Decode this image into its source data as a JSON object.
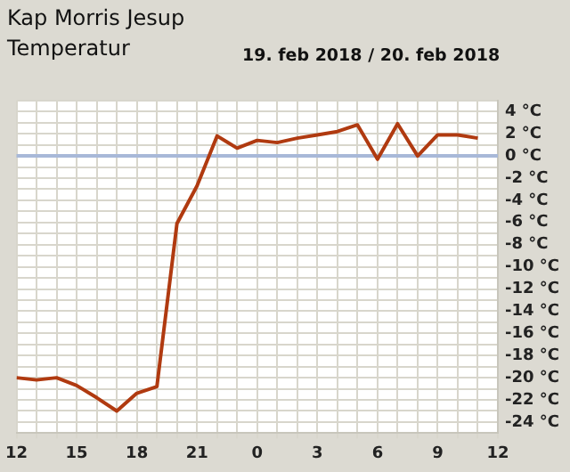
{
  "chart_data": {
    "type": "line",
    "title": "Kap Morris Jesup",
    "subtitle": "Temperatur",
    "annotations": [
      "19. feb 2018 / 20. feb 2018"
    ],
    "x": [
      "2018-02-19T12:00",
      "2018-02-19T13:00",
      "2018-02-19T14:00",
      "2018-02-19T15:00",
      "2018-02-19T16:00",
      "2018-02-19T17:00",
      "2018-02-19T18:00",
      "2018-02-19T19:00",
      "2018-02-19T20:00",
      "2018-02-19T21:00",
      "2018-02-19T22:00",
      "2018-02-19T23:00",
      "2018-02-20T00:00",
      "2018-02-20T01:00",
      "2018-02-20T02:00",
      "2018-02-20T03:00",
      "2018-02-20T04:00",
      "2018-02-20T05:00",
      "2018-02-20T06:00",
      "2018-02-20T07:00",
      "2018-02-20T08:00",
      "2018-02-20T09:00",
      "2018-02-20T10:00",
      "2018-02-20T11:00"
    ],
    "series": [
      {
        "color": "#b03a10",
        "values": [
          -20,
          -20.2,
          -20,
          -20.7,
          -21.8,
          -23,
          -21.4,
          -20.8,
          -6.1,
          -2.7,
          1.8,
          0.7,
          1.4,
          1.2,
          1.6,
          1.9,
          2.2,
          2.8,
          -0.3,
          2.9,
          0,
          1.9,
          1.9,
          1.6
        ]
      }
    ],
    "xlim": [
      "2018-02-19T12:00",
      "2018-02-20T12:00"
    ],
    "xticks": [
      {
        "value": "2018-02-19T12:00",
        "label": "12"
      },
      {
        "value": "2018-02-19T13:00",
        "label": null
      },
      {
        "value": "2018-02-19T14:00",
        "label": null
      },
      {
        "value": "2018-02-19T15:00",
        "label": "15"
      },
      {
        "value": "2018-02-19T16:00",
        "label": null
      },
      {
        "value": "2018-02-19T17:00",
        "label": null
      },
      {
        "value": "2018-02-19T18:00",
        "label": "18"
      },
      {
        "value": "2018-02-19T19:00",
        "label": null
      },
      {
        "value": "2018-02-19T20:00",
        "label": null
      },
      {
        "value": "2018-02-19T21:00",
        "label": "21"
      },
      {
        "value": "2018-02-19T22:00",
        "label": null
      },
      {
        "value": "2018-02-19T23:00",
        "label": null
      },
      {
        "value": "2018-02-20T00:00",
        "label": "0"
      },
      {
        "value": "2018-02-20T01:00",
        "label": null
      },
      {
        "value": "2018-02-20T02:00",
        "label": null
      },
      {
        "value": "2018-02-20T03:00",
        "label": "3"
      },
      {
        "value": "2018-02-20T04:00",
        "label": null
      },
      {
        "value": "2018-02-20T05:00",
        "label": null
      },
      {
        "value": "2018-02-20T06:00",
        "label": "6"
      },
      {
        "value": "2018-02-20T07:00",
        "label": null
      },
      {
        "value": "2018-02-20T08:00",
        "label": null
      },
      {
        "value": "2018-02-20T09:00",
        "label": "9"
      },
      {
        "value": "2018-02-20T10:00",
        "label": null
      },
      {
        "value": "2018-02-20T11:00",
        "label": null
      },
      {
        "value": "2018-02-20T12:00",
        "label": "12"
      }
    ],
    "ylim": [
      -25,
      5
    ],
    "yticks": [
      {
        "value": -25,
        "label": null
      },
      {
        "value": -24,
        "label": "-24 °C"
      },
      {
        "value": -23,
        "label": null
      },
      {
        "value": -22,
        "label": "-22 °C"
      },
      {
        "value": -21,
        "label": null
      },
      {
        "value": -20,
        "label": "-20 °C"
      },
      {
        "value": -19,
        "label": null
      },
      {
        "value": -18,
        "label": "-18 °C"
      },
      {
        "value": -17,
        "label": null
      },
      {
        "value": -16,
        "label": "-16 °C"
      },
      {
        "value": -15,
        "label": null
      },
      {
        "value": -14,
        "label": "-14 °C"
      },
      {
        "value": -13,
        "label": null
      },
      {
        "value": -12,
        "label": "-12 °C"
      },
      {
        "value": -11,
        "label": null
      },
      {
        "value": -10,
        "label": "-10 °C"
      },
      {
        "value": -9,
        "label": null
      },
      {
        "value": -8,
        "label": "-8 °C"
      },
      {
        "value": -7,
        "label": null
      },
      {
        "value": -6,
        "label": "-6 °C"
      },
      {
        "value": -5,
        "label": null
      },
      {
        "value": -4,
        "label": "-4 °C"
      },
      {
        "value": -3,
        "label": null
      },
      {
        "value": -2,
        "label": "-2 °C"
      },
      {
        "value": -1,
        "label": null
      },
      {
        "value": 0,
        "label": "0 °C"
      },
      {
        "value": 1,
        "label": null
      },
      {
        "value": 2,
        "label": "2 °C"
      },
      {
        "value": 3,
        "label": null
      },
      {
        "value": 4,
        "label": "4 °C"
      },
      {
        "value": 5,
        "label": null
      }
    ],
    "ref_lines": [
      {
        "axis": "y",
        "value": 0,
        "color": "#a8b8d8"
      }
    ],
    "grid": true,
    "legend": false,
    "marker": "none",
    "line_style": "solid"
  }
}
